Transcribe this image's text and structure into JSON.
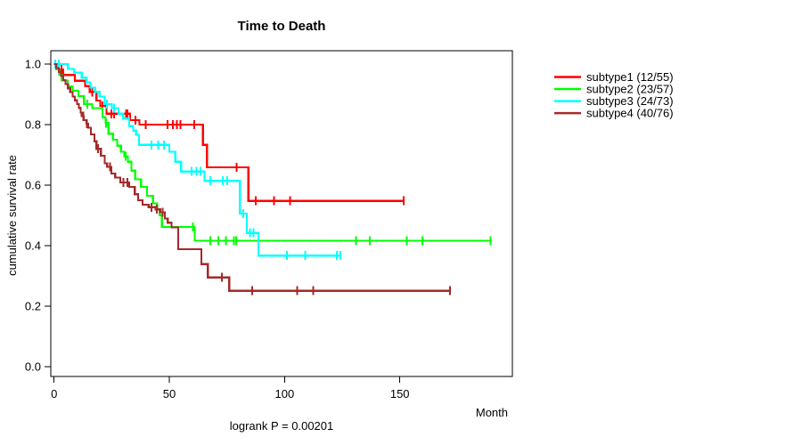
{
  "figure": {
    "title": "Time to Death",
    "x_axis_label": "Month",
    "y_axis_label": "cumulative survival rate",
    "footnote": "logrank P = 0.00201"
  },
  "chart_data": {
    "type": "line",
    "subtype": "kaplan-meier-step",
    "title": "Time to Death",
    "xlabel": "Month",
    "ylabel": "cumulative survival rate",
    "annotation": "logrank P = 0.00201",
    "xlim": [
      0,
      198
    ],
    "ylim": [
      0.0,
      1.0
    ],
    "grid": false,
    "legend_position": "right-outside",
    "x_ticks": [
      {
        "value": 0,
        "label": "0"
      },
      {
        "value": 50,
        "label": "50"
      },
      {
        "value": 100,
        "label": "100"
      },
      {
        "value": 150,
        "label": "150"
      }
    ],
    "y_ticks": [
      {
        "value": 0.0,
        "label": "0.0"
      },
      {
        "value": 0.2,
        "label": "0.2"
      },
      {
        "value": 0.4,
        "label": "0.4"
      },
      {
        "value": 0.6,
        "label": "0.6"
      },
      {
        "value": 0.8,
        "label": "0.8"
      },
      {
        "value": 1.0,
        "label": "1.0"
      }
    ],
    "series": [
      {
        "name": "subtype1",
        "label": "subtype1 (12/55)",
        "events": 12,
        "n": 55,
        "color": "#FF0000",
        "end_month": 151.6,
        "steps": [
          [
            0,
            1.0
          ],
          [
            2,
            0.982
          ],
          [
            4,
            0.964
          ],
          [
            9,
            0.945
          ],
          [
            13.5,
            0.927
          ],
          [
            15.5,
            0.908
          ],
          [
            18.4,
            0.879
          ],
          [
            20,
            0.862
          ],
          [
            22.7,
            0.836
          ],
          [
            33,
            0.815
          ],
          [
            37,
            0.8
          ],
          [
            64.6,
            0.733
          ],
          [
            66.3,
            0.659
          ],
          [
            84.3,
            0.548
          ]
        ],
        "censor_ticks": [
          [
            3.3,
            0.982
          ],
          [
            16.5,
            0.908
          ],
          [
            21,
            0.862
          ],
          [
            24.9,
            0.836
          ],
          [
            26.1,
            0.836
          ],
          [
            31.3,
            0.836
          ],
          [
            31.9,
            0.836
          ],
          [
            35.2,
            0.815
          ],
          [
            39.7,
            0.8
          ],
          [
            49.3,
            0.8
          ],
          [
            51.6,
            0.8
          ],
          [
            53.3,
            0.8
          ],
          [
            54.9,
            0.8
          ],
          [
            60.9,
            0.8
          ],
          [
            79.1,
            0.659
          ],
          [
            87.5,
            0.548
          ],
          [
            95.5,
            0.548
          ],
          [
            102.3,
            0.548
          ],
          [
            151.6,
            0.548
          ]
        ]
      },
      {
        "name": "subtype2",
        "label": "subtype2 (23/57)",
        "events": 23,
        "n": 57,
        "color": "#00FF00",
        "end_month": 189.5,
        "steps": [
          [
            0,
            1.0
          ],
          [
            1,
            0.982
          ],
          [
            2.2,
            0.965
          ],
          [
            3.3,
            0.946
          ],
          [
            5.9,
            0.926
          ],
          [
            8,
            0.912
          ],
          [
            10.5,
            0.894
          ],
          [
            13,
            0.868
          ],
          [
            16.5,
            0.854
          ],
          [
            21,
            0.824
          ],
          [
            22.3,
            0.805
          ],
          [
            23.6,
            0.77
          ],
          [
            25.5,
            0.75
          ],
          [
            27.4,
            0.73
          ],
          [
            29,
            0.71
          ],
          [
            30.5,
            0.695
          ],
          [
            32,
            0.677
          ],
          [
            33.5,
            0.648
          ],
          [
            35.2,
            0.619
          ],
          [
            37.7,
            0.594
          ],
          [
            40.3,
            0.565
          ],
          [
            42.9,
            0.54
          ],
          [
            44.8,
            0.52
          ],
          [
            45.8,
            0.501
          ],
          [
            46.8,
            0.462
          ],
          [
            61,
            0.416
          ]
        ],
        "censor_ticks": [
          [
            14.5,
            0.868
          ],
          [
            22.5,
            0.805
          ],
          [
            31,
            0.695
          ],
          [
            60.3,
            0.462
          ],
          [
            67.8,
            0.416
          ],
          [
            71.2,
            0.416
          ],
          [
            74.5,
            0.416
          ],
          [
            78,
            0.416
          ],
          [
            79,
            0.416
          ],
          [
            130.9,
            0.416
          ],
          [
            137,
            0.416
          ],
          [
            153.1,
            0.416
          ],
          [
            159.7,
            0.416
          ],
          [
            189.3,
            0.416
          ]
        ]
      },
      {
        "name": "subtype3",
        "label": "subtype3 (24/73)",
        "events": 24,
        "n": 73,
        "color": "#00FFFF",
        "end_month": 124.6,
        "steps": [
          [
            0,
            1.0
          ],
          [
            6,
            0.984
          ],
          [
            8.6,
            0.972
          ],
          [
            12,
            0.955
          ],
          [
            14,
            0.94
          ],
          [
            15.8,
            0.922
          ],
          [
            17.8,
            0.908
          ],
          [
            19.7,
            0.893
          ],
          [
            22,
            0.868
          ],
          [
            25,
            0.854
          ],
          [
            27.9,
            0.836
          ],
          [
            30,
            0.82
          ],
          [
            32.6,
            0.795
          ],
          [
            34.3,
            0.78
          ],
          [
            35.6,
            0.766
          ],
          [
            36.8,
            0.733
          ],
          [
            50,
            0.71
          ],
          [
            52.6,
            0.677
          ],
          [
            55.1,
            0.645
          ],
          [
            65.2,
            0.614
          ],
          [
            80.6,
            0.506
          ],
          [
            83.6,
            0.442
          ],
          [
            88.6,
            0.367
          ]
        ],
        "censor_ticks": [
          [
            0.5,
            1.0
          ],
          [
            2,
            1.0
          ],
          [
            23,
            0.868
          ],
          [
            26,
            0.854
          ],
          [
            42.3,
            0.733
          ],
          [
            45.1,
            0.733
          ],
          [
            47.7,
            0.733
          ],
          [
            59.6,
            0.645
          ],
          [
            61.8,
            0.645
          ],
          [
            63.5,
            0.645
          ],
          [
            67.8,
            0.614
          ],
          [
            73.2,
            0.614
          ],
          [
            75.1,
            0.614
          ],
          [
            82,
            0.506
          ],
          [
            85,
            0.442
          ],
          [
            86.5,
            0.442
          ],
          [
            101,
            0.367
          ],
          [
            109,
            0.367
          ],
          [
            122.7,
            0.367
          ],
          [
            124.3,
            0.367
          ]
        ]
      },
      {
        "name": "subtype4",
        "label": "subtype4 (40/76)",
        "events": 40,
        "n": 76,
        "color": "#A52A2A",
        "end_month": 171.7,
        "steps": [
          [
            0,
            1.0
          ],
          [
            1,
            0.987
          ],
          [
            2,
            0.974
          ],
          [
            3,
            0.96
          ],
          [
            4,
            0.947
          ],
          [
            5,
            0.934
          ],
          [
            6,
            0.92
          ],
          [
            7,
            0.907
          ],
          [
            8,
            0.893
          ],
          [
            9,
            0.88
          ],
          [
            10,
            0.868
          ],
          [
            10.8,
            0.855
          ],
          [
            11.5,
            0.84
          ],
          [
            12,
            0.828
          ],
          [
            12.8,
            0.815
          ],
          [
            14,
            0.803
          ],
          [
            14.8,
            0.79
          ],
          [
            16,
            0.768
          ],
          [
            17.5,
            0.745
          ],
          [
            18.4,
            0.72
          ],
          [
            20.3,
            0.697
          ],
          [
            22,
            0.672
          ],
          [
            23,
            0.66
          ],
          [
            24.9,
            0.638
          ],
          [
            26.5,
            0.625
          ],
          [
            28.7,
            0.609
          ],
          [
            32.6,
            0.594
          ],
          [
            35,
            0.57
          ],
          [
            36.5,
            0.55
          ],
          [
            38.4,
            0.535
          ],
          [
            41,
            0.527
          ],
          [
            44,
            0.52
          ],
          [
            46,
            0.51
          ],
          [
            48,
            0.49
          ],
          [
            49.3,
            0.476
          ],
          [
            51,
            0.46
          ],
          [
            53.8,
            0.388
          ],
          [
            63.9,
            0.339
          ],
          [
            66.7,
            0.295
          ],
          [
            76,
            0.251
          ]
        ],
        "censor_ticks": [
          [
            12.6,
            0.828
          ],
          [
            14.2,
            0.803
          ],
          [
            19,
            0.72
          ],
          [
            24.2,
            0.66
          ],
          [
            30,
            0.609
          ],
          [
            31.9,
            0.609
          ],
          [
            42.3,
            0.527
          ],
          [
            44.5,
            0.52
          ],
          [
            47,
            0.51
          ],
          [
            72.8,
            0.295
          ],
          [
            86,
            0.251
          ],
          [
            105.4,
            0.251
          ],
          [
            112.5,
            0.251
          ],
          [
            171.7,
            0.251
          ]
        ]
      }
    ]
  }
}
